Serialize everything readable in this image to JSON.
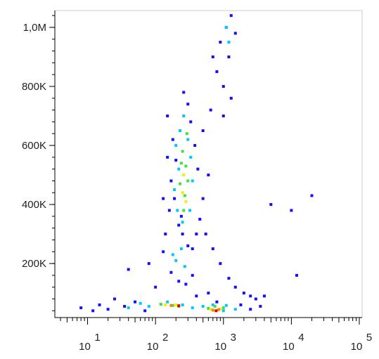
{
  "chart_data": {
    "type": "scatter",
    "xscale": "log",
    "xlim": [
      3.3,
      110000
    ],
    "ylim": [
      17000,
      1057000
    ],
    "xticks": [
      {
        "value": 10,
        "label": "10",
        "exponent": "1"
      },
      {
        "value": 100,
        "label": "10",
        "exponent": "2"
      },
      {
        "value": 1000,
        "label": "10",
        "exponent": "3"
      },
      {
        "value": 10000,
        "label": "10",
        "exponent": "4"
      },
      {
        "value": 100000,
        "label": "10",
        "exponent": "5"
      }
    ],
    "yticks": [
      {
        "value": 200000,
        "label": "200K"
      },
      {
        "value": 400000,
        "label": "400K"
      },
      {
        "value": 600000,
        "label": "600K"
      },
      {
        "value": 800000,
        "label": "800K"
      },
      {
        "value": 1000000,
        "label": "1,0M"
      }
    ],
    "series": [
      {
        "color": "#1010ff",
        "x": [
          150,
          180,
          200,
          170,
          190,
          160,
          220,
          250,
          300,
          350,
          400,
          450,
          500,
          420,
          380,
          330,
          300,
          260,
          500,
          600,
          700,
          900,
          1100,
          1300,
          1500,
          1200,
          800,
          1000,
          650,
          550,
          700,
          900,
          1200,
          1500,
          2000,
          2500,
          3000,
          130,
          170,
          220,
          280,
          350,
          100,
          40,
          25,
          15,
          8,
          12,
          20,
          35,
          50,
          70,
          400,
          600,
          800,
          1800,
          2500,
          3500,
          140,
          240,
          130,
          150,
          4000,
          10000,
          20000,
          5000,
          12000,
          80,
          1000,
          1300
        ],
        "values": [
          700000,
          620000,
          550000,
          480000,
          420000,
          380000,
          330000,
          300000,
          260000,
          250000,
          300000,
          350000,
          420000,
          520000,
          600000,
          680000,
          740000,
          780000,
          650000,
          500000,
          900000,
          950000,
          1000000,
          1040000,
          980000,
          900000,
          850000,
          800000,
          720000,
          300000,
          250000,
          200000,
          150000,
          120000,
          100000,
          90000,
          80000,
          240000,
          170000,
          140000,
          130000,
          160000,
          120000,
          180000,
          80000,
          60000,
          50000,
          40000,
          45000,
          55000,
          70000,
          40000,
          90000,
          100000,
          70000,
          60000,
          45000,
          55000,
          300000,
          360000,
          420000,
          560000,
          90000,
          380000,
          430000,
          400000,
          160000,
          200000,
          700000,
          760000
        ]
      },
      {
        "color": "#00c8ff",
        "x": [
          200,
          230,
          260,
          220,
          190,
          210,
          250,
          320,
          350,
          330,
          300,
          240,
          200,
          270,
          180,
          60,
          80,
          150,
          250,
          350,
          500,
          700,
          1100,
          1500,
          40,
          1000,
          1200,
          1100
        ],
        "values": [
          600000,
          650000,
          700000,
          520000,
          450000,
          380000,
          340000,
          380000,
          480000,
          560000,
          620000,
          250000,
          210000,
          190000,
          230000,
          65000,
          55000,
          70000,
          60000,
          50000,
          55000,
          60000,
          58000,
          45000,
          50000,
          40000,
          950000,
          1000000
        ]
      },
      {
        "color": "#40e040",
        "x": [
          250,
          280,
          230,
          270,
          300,
          260,
          290,
          240,
          120,
          180,
          220,
          600,
          1000,
          750
        ],
        "values": [
          580000,
          530000,
          470000,
          430000,
          480000,
          380000,
          640000,
          540000,
          62000,
          58000,
          55000,
          48000,
          50000,
          55000
        ]
      },
      {
        "color": "#f0f000",
        "x": [
          260,
          250,
          280,
          140,
          200,
          650,
          900
        ],
        "values": [
          500000,
          440000,
          410000,
          60000,
          60000,
          45000,
          46000
        ]
      },
      {
        "color": "#ff8000",
        "x": [
          170,
          700,
          850
        ],
        "values": [
          58000,
          42000,
          44000
        ]
      },
      {
        "color": "#e00000",
        "x": [
          780,
          220
        ],
        "values": [
          40000,
          57000
        ]
      }
    ]
  }
}
